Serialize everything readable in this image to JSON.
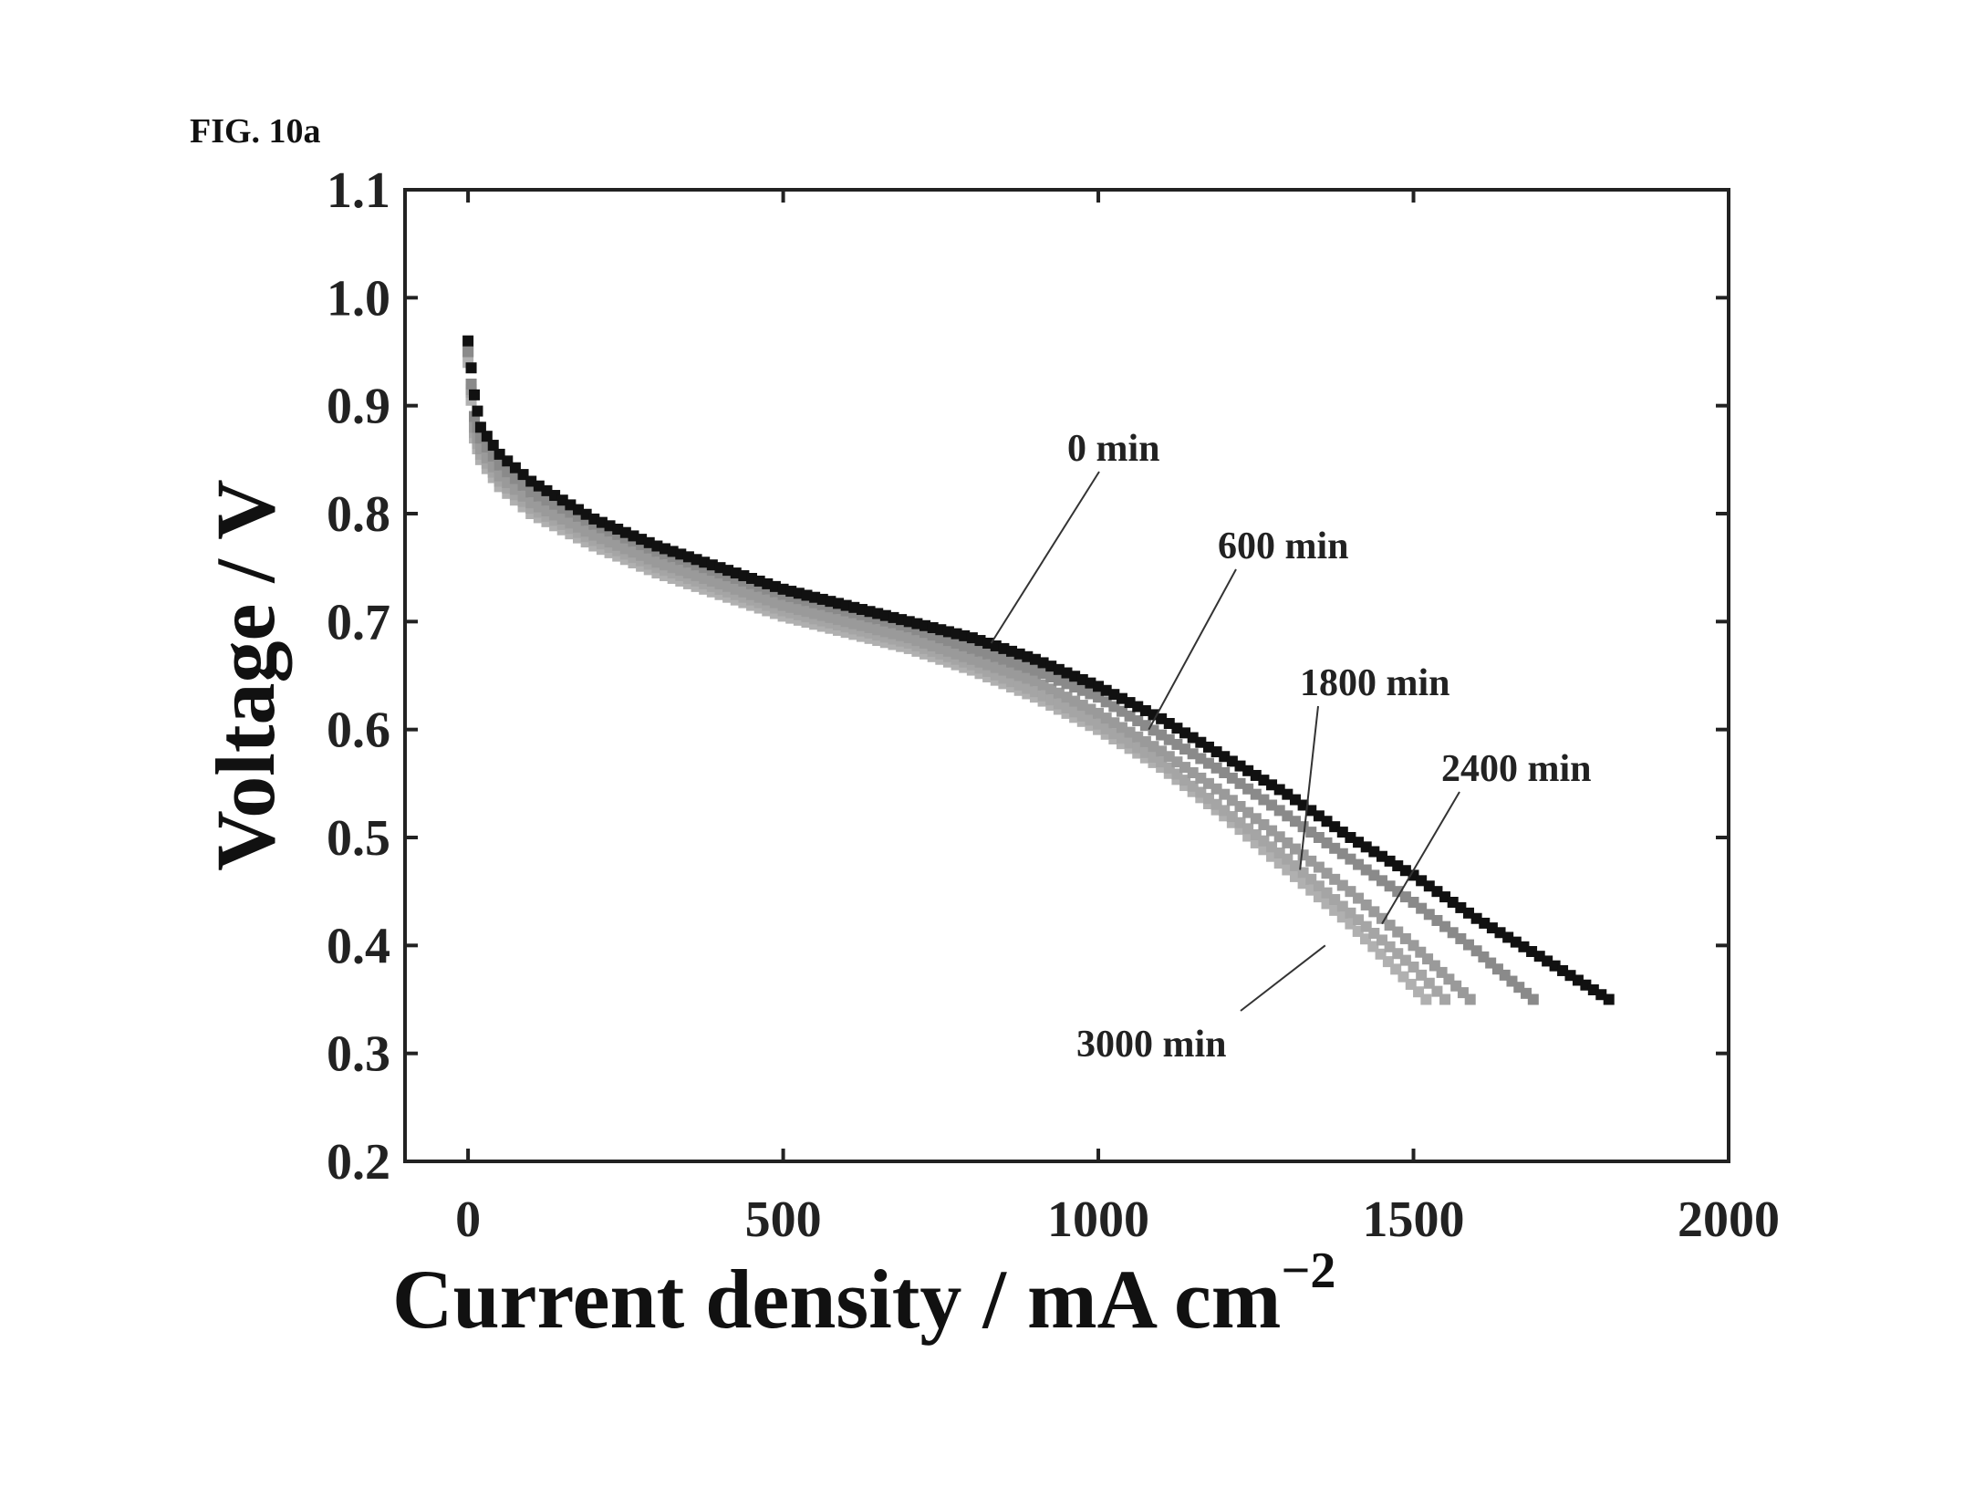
{
  "figure_label": "FIG. 10a",
  "chart_data": {
    "type": "scatter",
    "title": "",
    "xlabel": "Current density / mA cm",
    "xlabel_superscript": "−2",
    "ylabel": "Voltage / V",
    "xlim": [
      -100,
      2000
    ],
    "ylim": [
      0.2,
      1.1
    ],
    "xticks": [
      "0",
      "500",
      "1000",
      "1500",
      "2000"
    ],
    "xtick_values": [
      0,
      500,
      1000,
      1500,
      2000
    ],
    "yticks": [
      "0.2",
      "0.3",
      "0.4",
      "0.5",
      "0.6",
      "0.7",
      "0.8",
      "0.9",
      "1.0",
      "1.1"
    ],
    "ytick_values": [
      0.2,
      0.3,
      0.4,
      0.5,
      0.6,
      0.7,
      0.8,
      0.9,
      1.0,
      1.1
    ],
    "grid": false,
    "series": [
      {
        "name": "0 min",
        "color": "#111111",
        "x": [
          0,
          10,
          20,
          50,
          100,
          200,
          300,
          400,
          500,
          600,
          700,
          800,
          900,
          1000,
          1100,
          1200,
          1300,
          1400,
          1500,
          1600,
          1700,
          1810
        ],
        "y": [
          0.96,
          0.91,
          0.88,
          0.855,
          0.83,
          0.795,
          0.77,
          0.75,
          0.73,
          0.715,
          0.7,
          0.685,
          0.665,
          0.64,
          0.61,
          0.575,
          0.54,
          0.5,
          0.465,
          0.425,
          0.39,
          0.35
        ]
      },
      {
        "name": "600 min",
        "color": "#8a8a8a",
        "x": [
          0,
          10,
          20,
          50,
          100,
          200,
          300,
          400,
          500,
          600,
          700,
          800,
          900,
          1000,
          1100,
          1200,
          1300,
          1400,
          1500,
          1600,
          1690
        ],
        "y": [
          0.95,
          0.89,
          0.87,
          0.845,
          0.82,
          0.79,
          0.765,
          0.745,
          0.725,
          0.71,
          0.695,
          0.675,
          0.655,
          0.63,
          0.595,
          0.56,
          0.52,
          0.48,
          0.44,
          0.395,
          0.35
        ]
      },
      {
        "name": "1800 min",
        "color": "#9a9a9a",
        "x": [
          0,
          10,
          20,
          50,
          100,
          200,
          300,
          400,
          500,
          600,
          700,
          800,
          900,
          1000,
          1100,
          1200,
          1300,
          1400,
          1500,
          1590
        ],
        "y": [
          0.95,
          0.88,
          0.86,
          0.835,
          0.81,
          0.78,
          0.755,
          0.735,
          0.715,
          0.7,
          0.685,
          0.665,
          0.645,
          0.615,
          0.58,
          0.54,
          0.495,
          0.45,
          0.4,
          0.35
        ]
      },
      {
        "name": "2400 min",
        "color": "#a5a5a5",
        "x": [
          0,
          10,
          20,
          50,
          100,
          200,
          300,
          400,
          500,
          600,
          700,
          800,
          900,
          1000,
          1100,
          1200,
          1300,
          1400,
          1500,
          1550
        ],
        "y": [
          0.95,
          0.875,
          0.855,
          0.83,
          0.805,
          0.775,
          0.75,
          0.73,
          0.71,
          0.695,
          0.68,
          0.66,
          0.635,
          0.605,
          0.57,
          0.525,
          0.48,
          0.43,
          0.38,
          0.35
        ]
      },
      {
        "name": "3000 min",
        "color": "#b0b0b0",
        "x": [
          0,
          10,
          20,
          50,
          100,
          200,
          300,
          400,
          500,
          600,
          700,
          800,
          900,
          1000,
          1100,
          1200,
          1300,
          1400,
          1520
        ],
        "y": [
          0.94,
          0.87,
          0.85,
          0.825,
          0.8,
          0.77,
          0.745,
          0.725,
          0.705,
          0.69,
          0.675,
          0.655,
          0.63,
          0.6,
          0.565,
          0.52,
          0.47,
          0.42,
          0.35
        ]
      }
    ],
    "annotations": [
      {
        "text": "0 min",
        "points_to": [
          830,
          0.68
        ]
      },
      {
        "text": "600 min",
        "points_to": [
          1080,
          0.6
        ]
      },
      {
        "text": "1800 min",
        "points_to": [
          1320,
          0.47
        ]
      },
      {
        "text": "2400 min",
        "points_to": [
          1450,
          0.42
        ]
      },
      {
        "text": "3000 min",
        "points_to": [
          1360,
          0.4
        ]
      }
    ]
  }
}
